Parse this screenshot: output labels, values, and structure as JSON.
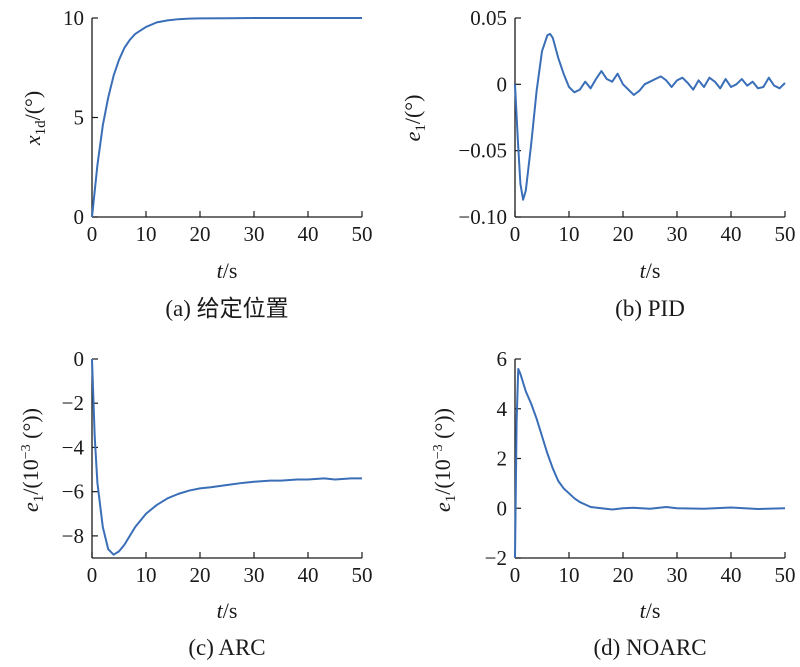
{
  "chart_data": [
    {
      "id": "a",
      "type": "line",
      "caption": "(a) 给定位置",
      "xlabel": "t/s",
      "ylabel": "x1d/(°)",
      "xlim": [
        0,
        50
      ],
      "ylim": [
        0,
        10
      ],
      "xticks": [
        0,
        10,
        20,
        30,
        40,
        50
      ],
      "yticks": [
        0,
        5,
        10
      ],
      "ytick_labels": [
        "0",
        "5",
        "10"
      ],
      "series": [
        {
          "color": "#3a6fb8",
          "x": [
            0,
            1,
            2,
            3,
            4,
            5,
            6,
            7,
            8,
            10,
            12,
            14,
            16,
            18,
            20,
            25,
            30,
            40,
            50
          ],
          "y": [
            0,
            2.6,
            4.6,
            6.0,
            7.1,
            7.9,
            8.5,
            8.9,
            9.2,
            9.55,
            9.78,
            9.88,
            9.94,
            9.97,
            9.98,
            9.99,
            10.0,
            10.0,
            10.0
          ]
        }
      ]
    },
    {
      "id": "b",
      "type": "line",
      "caption": "(b) PID",
      "xlabel": "t/s",
      "ylabel": "e1/(°)",
      "xlim": [
        0,
        50
      ],
      "ylim": [
        -0.1,
        0.05
      ],
      "xticks": [
        0,
        10,
        20,
        30,
        40,
        50
      ],
      "yticks": [
        0.05,
        0,
        -0.05,
        -0.1
      ],
      "ytick_labels": [
        "0.05",
        "0",
        "−0.05",
        "−0.10"
      ],
      "series": [
        {
          "color": "#3a6fb8",
          "x": [
            0,
            0.5,
            1,
            1.5,
            2,
            3,
            4,
            5,
            6,
            6.5,
            7,
            8,
            9,
            10,
            11,
            12,
            13,
            14,
            15,
            16,
            17,
            18,
            19,
            20,
            21,
            22,
            23,
            24,
            25,
            26,
            27,
            28,
            29,
            30,
            31,
            32,
            33,
            34,
            35,
            36,
            37,
            38,
            39,
            40,
            41,
            42,
            43,
            44,
            45,
            46,
            47,
            48,
            49,
            50
          ],
          "y": [
            0,
            -0.04,
            -0.075,
            -0.087,
            -0.08,
            -0.045,
            -0.005,
            0.025,
            0.037,
            0.038,
            0.035,
            0.02,
            0.008,
            -0.002,
            -0.006,
            -0.004,
            0.002,
            -0.003,
            0.004,
            0.01,
            0.004,
            0.002,
            0.008,
            0.0,
            -0.004,
            -0.008,
            -0.005,
            0.0,
            0.002,
            0.004,
            0.006,
            0.003,
            -0.002,
            0.003,
            0.005,
            0.001,
            -0.004,
            0.003,
            -0.002,
            0.005,
            0.002,
            -0.003,
            0.004,
            -0.002,
            0.0,
            0.004,
            -0.001,
            0.002,
            -0.003,
            -0.002,
            0.005,
            -0.001,
            -0.003,
            0.001
          ]
        }
      ]
    },
    {
      "id": "c",
      "type": "line",
      "caption": "(c) ARC",
      "xlabel": "t/s",
      "ylabel": "e1/(10−3 (°))",
      "xlim": [
        0,
        50
      ],
      "ylim": [
        -9,
        0
      ],
      "xticks": [
        0,
        10,
        20,
        30,
        40,
        50
      ],
      "yticks": [
        0,
        -2,
        -4,
        -6,
        -8
      ],
      "ytick_labels": [
        "0",
        "−2",
        "−4",
        "−6",
        "−8"
      ],
      "series": [
        {
          "color": "#3a6fb8",
          "x": [
            0,
            0.5,
            1,
            2,
            3,
            4,
            5,
            6,
            7,
            8,
            9,
            10,
            12,
            14,
            16,
            18,
            20,
            22,
            25,
            28,
            30,
            33,
            35,
            38,
            40,
            43,
            45,
            48,
            50
          ],
          "y": [
            0,
            -3.5,
            -5.6,
            -7.6,
            -8.6,
            -8.85,
            -8.7,
            -8.4,
            -8.0,
            -7.6,
            -7.3,
            -7.0,
            -6.6,
            -6.3,
            -6.1,
            -5.95,
            -5.85,
            -5.8,
            -5.7,
            -5.6,
            -5.55,
            -5.5,
            -5.5,
            -5.45,
            -5.45,
            -5.4,
            -5.45,
            -5.4,
            -5.4
          ]
        }
      ]
    },
    {
      "id": "d",
      "type": "line",
      "caption": "(d) NOARC",
      "xlabel": "t/s",
      "ylabel": "e1/(10−3 (°))",
      "xlim": [
        0,
        50
      ],
      "ylim": [
        -2,
        6
      ],
      "xticks": [
        0,
        10,
        20,
        30,
        40,
        50
      ],
      "yticks": [
        6,
        4,
        2,
        0,
        -2
      ],
      "ytick_labels": [
        "6",
        "4",
        "2",
        "0",
        "−2"
      ],
      "series": [
        {
          "color": "#3a6fb8",
          "x": [
            0,
            0.3,
            0.6,
            1,
            2,
            3,
            4,
            5,
            6,
            7,
            8,
            9,
            10,
            11,
            12,
            13,
            14,
            16,
            18,
            20,
            22,
            25,
            28,
            30,
            35,
            40,
            45,
            50
          ],
          "y": [
            -2,
            3.5,
            5.6,
            5.4,
            4.7,
            4.2,
            3.6,
            2.9,
            2.2,
            1.6,
            1.1,
            0.8,
            0.6,
            0.4,
            0.25,
            0.15,
            0.05,
            0.0,
            -0.05,
            0.0,
            0.02,
            -0.02,
            0.05,
            0.0,
            -0.02,
            0.03,
            -0.03,
            0.0
          ]
        }
      ]
    }
  ]
}
